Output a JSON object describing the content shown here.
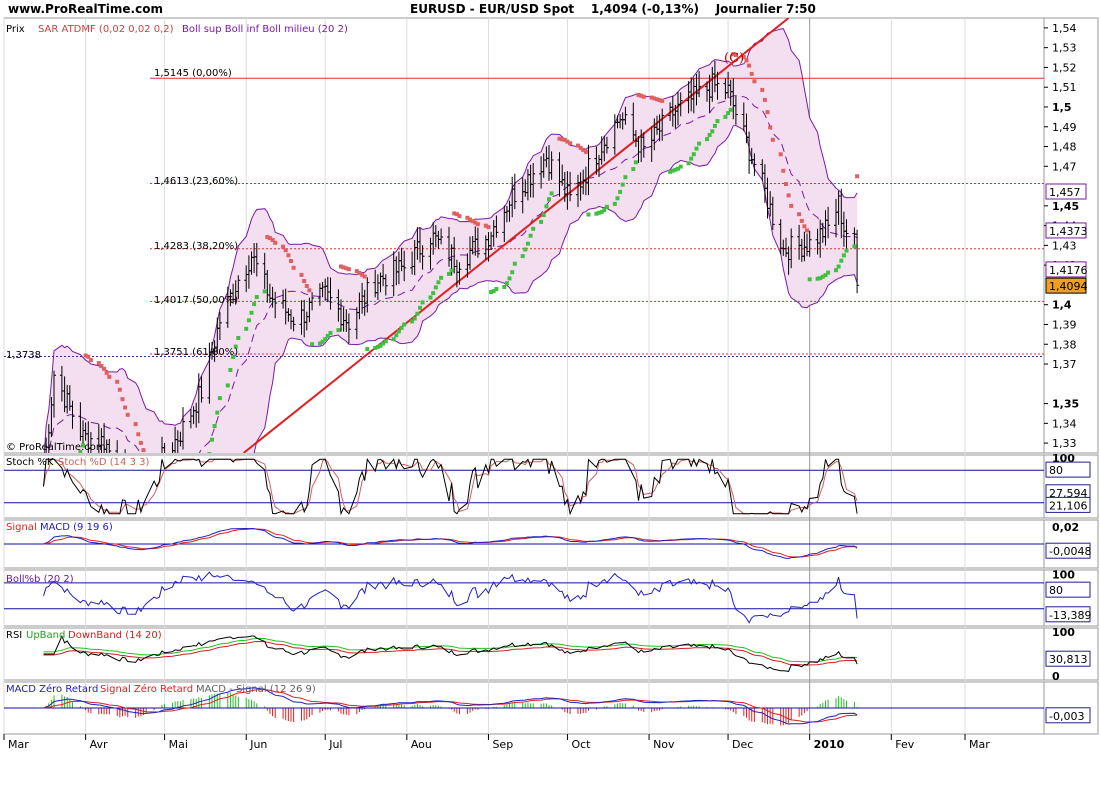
{
  "header": {
    "site": "www.ProRealTime.com",
    "symbol": "EURUSD - EUR/USD Spot",
    "last_change": "1,4094 (-0,13%)",
    "period": "Journalier",
    "time": "7:50"
  },
  "colors": {
    "price_bar": "#000000",
    "sar_above": "#e06060",
    "sar_below": "#40c040",
    "bollinger_fill": "#f4dff0",
    "bollinger_line": "#7a1aa6",
    "trend_line": "#e02020",
    "fib_line": "#e03030",
    "stoch_k": "#000000",
    "stoch_d": "#d06060",
    "macd": "#2020c0",
    "signal": "#e02020",
    "boll_pctb": "#2020c0",
    "rsi": "#000000",
    "rsi_upband": "#20c020",
    "rsi_downband": "#d02020",
    "hist": "#20c020",
    "ref_line": "#1010a0"
  },
  "price_panel": {
    "prix_label": "Prix",
    "sar_legend": "SAR ATDMF (0,02 0,02 0,2)",
    "boll_legend": "Boll sup Boll inf Boll milieu (20 2)",
    "copyright": "© ProRealTime.com",
    "wave_label": "(C)",
    "y_ticks": [
      "1,54",
      "1,53",
      "1,52",
      "1,51",
      "1,5",
      "1,49",
      "1,48",
      "1,47",
      "1,45",
      "1,44",
      "1,43",
      "1,42",
      "1,4",
      "1,39",
      "1,38",
      "1,37",
      "1,35",
      "1,34",
      "1,33"
    ],
    "value_tags": [
      "1,457",
      "1,4373",
      "1,4176",
      "1,4094"
    ],
    "left_tag": "1,3738",
    "fib_levels": [
      {
        "label": "1,5145 (0,00%)",
        "value": 1.5145
      },
      {
        "label": "1,4613 (23,60%)",
        "value": 1.4613
      },
      {
        "label": "1,4283 (38,20%)",
        "value": 1.4283
      },
      {
        "label": "1,4017 (50,00%)",
        "value": 1.4017
      },
      {
        "label": "1,3751 (61,80%)",
        "value": 1.3751
      }
    ]
  },
  "stoch_panel": {
    "legend_a": "Stoch %K",
    "legend_b": "Stoch %D (14 3 3)",
    "y_ticks": [
      "100",
      "80"
    ],
    "value_tags": [
      "27,594",
      "21,106"
    ]
  },
  "macd_panel": {
    "legend_a": "Signal",
    "legend_b": "MACD (9 19 6)",
    "y_ticks": [
      "0,02"
    ],
    "value_tags": [
      "-0,0048"
    ]
  },
  "boll_panel": {
    "legend": "Boll%b (20 2)",
    "y_ticks": [
      "100",
      "80"
    ],
    "value_tags": [
      "-13,389"
    ]
  },
  "rsi_panel": {
    "legend_a": "RSI",
    "legend_b": "UpBand",
    "legend_c": "DownBand (14 20)",
    "y_ticks": [
      "100",
      "0"
    ],
    "value_tags": [
      "30,813"
    ]
  },
  "macdzr_panel": {
    "legend_a": "MACD Zéro Retard",
    "legend_b": "Signal Zéro Retard",
    "legend_c": "MACD - Signal (12 26 9)",
    "value_tags": [
      "-0,003"
    ]
  },
  "x_axis": {
    "labels": [
      "Mar",
      "Avr",
      "Mai",
      "Jun",
      "Jul",
      "Aou",
      "Sep",
      "Oct",
      "Nov",
      "Dec",
      "2010",
      "Fev",
      "Mar"
    ]
  },
  "chart_data": {
    "type": "candlestick",
    "title": "EURUSD - EUR/USD Spot",
    "period": "daily",
    "ylim": [
      1.325,
      1.545
    ],
    "x_range": [
      "2009-03-01",
      "2010-03-31"
    ],
    "month_ticks": [
      "Mar",
      "Avr",
      "Mai",
      "Jun",
      "Jul",
      "Aou",
      "Sep",
      "Oct",
      "Nov",
      "Dec",
      "2010",
      "Fev",
      "Mar"
    ],
    "close_path": [
      [
        "2009-03-15",
        1.302
      ],
      [
        "2009-03-20",
        1.365
      ],
      [
        "2009-03-31",
        1.333
      ],
      [
        "2009-04-08",
        1.331
      ],
      [
        "2009-04-20",
        1.302
      ],
      [
        "2009-04-28",
        1.318
      ],
      [
        "2009-05-07",
        1.335
      ],
      [
        "2009-05-15",
        1.356
      ],
      [
        "2009-05-22",
        1.392
      ],
      [
        "2009-05-29",
        1.413
      ],
      [
        "2009-06-03",
        1.425
      ],
      [
        "2009-06-10",
        1.404
      ],
      [
        "2009-06-20",
        1.392
      ],
      [
        "2009-07-01",
        1.405
      ],
      [
        "2009-07-10",
        1.391
      ],
      [
        "2009-07-20",
        1.412
      ],
      [
        "2009-07-31",
        1.419
      ],
      [
        "2009-08-10",
        1.435
      ],
      [
        "2009-08-20",
        1.422
      ],
      [
        "2009-08-31",
        1.433
      ],
      [
        "2009-09-10",
        1.455
      ],
      [
        "2009-09-23",
        1.475
      ],
      [
        "2009-10-02",
        1.453
      ],
      [
        "2009-10-14",
        1.481
      ],
      [
        "2009-10-21",
        1.495
      ],
      [
        "2009-10-30",
        1.478
      ],
      [
        "2009-11-10",
        1.497
      ],
      [
        "2009-11-25",
        1.511
      ],
      [
        "2009-12-01",
        1.508
      ],
      [
        "2009-12-08",
        1.482
      ],
      [
        "2009-12-15",
        1.457
      ],
      [
        "2009-12-22",
        1.428
      ],
      [
        "2010-01-01",
        1.431
      ],
      [
        "2010-01-08",
        1.439
      ],
      [
        "2010-01-12",
        1.451
      ],
      [
        "2010-01-14",
        1.439
      ],
      [
        "2010-01-18",
        1.431
      ],
      [
        "2010-01-19",
        1.409
      ]
    ],
    "series": [
      {
        "name": "SAR ATDMF (0,02 0,02 0,2)"
      },
      {
        "name": "Boll sup Boll inf Boll milieu (20 2)"
      }
    ],
    "annotations": [
      {
        "type": "hline",
        "value": 1.5145,
        "label": "1,5145 (0,00%)"
      },
      {
        "type": "hline",
        "value": 1.4613,
        "label": "1,4613 (23,60%)"
      },
      {
        "type": "hline",
        "value": 1.4283,
        "label": "1,4283 (38,20%)"
      },
      {
        "type": "hline",
        "value": 1.4017,
        "label": "1,4017 (50,00%)"
      },
      {
        "type": "hline",
        "value": 1.3751,
        "label": "1,3751 (61,80%)"
      },
      {
        "type": "hline",
        "value": 1.3738,
        "label": "1,3738"
      },
      {
        "type": "trendline",
        "from": [
          "2009-05-31",
          1.325
        ],
        "to": [
          "2009-12-24",
          1.545
        ]
      },
      {
        "type": "text",
        "label": "(C)",
        "x": "2009-12-03",
        "y": 1.522
      }
    ],
    "last": {
      "close": 1.4094,
      "change_pct": -0.13,
      "boll_up": 1.457,
      "boll_mid": 1.4373,
      "boll_low": 1.4176
    }
  }
}
